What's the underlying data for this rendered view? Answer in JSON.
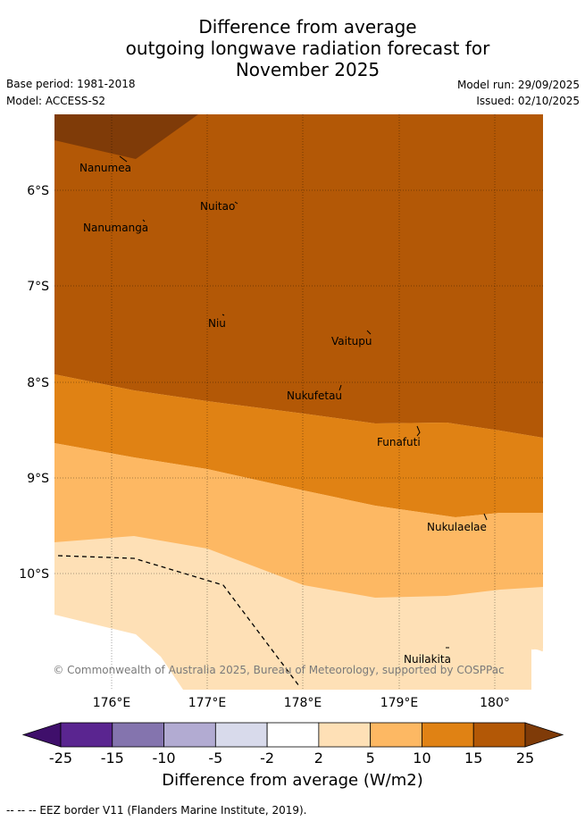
{
  "title": {
    "line1": "Difference from average",
    "line2": "outgoing longwave radiation forecast for",
    "line3": "November 2025"
  },
  "meta": {
    "base_period": "Base period: 1981-2018",
    "model": "Model: ACCESS-S2",
    "model_run": "Model run: 29/09/2025",
    "issued": "Issued: 02/10/2025"
  },
  "map": {
    "lat_labels": [
      "6°S",
      "7°S",
      "8°S",
      "9°S",
      "10°S"
    ],
    "lon_labels": [
      "176°E",
      "177°E",
      "178°E",
      "179°E",
      "180°"
    ],
    "places": [
      {
        "name": "Nanumea"
      },
      {
        "name": "Nuitao"
      },
      {
        "name": "Nanumanga"
      },
      {
        "name": "Niu"
      },
      {
        "name": "Vaitupu"
      },
      {
        "name": "Nukufetau"
      },
      {
        "name": "Funafuti"
      },
      {
        "name": "Nukulaelae"
      },
      {
        "name": "Nuilakita"
      }
    ],
    "copyright": "© Commonwealth of Australia 2025, Bureau of Meteorology, supported by COSPPac"
  },
  "colorbar": {
    "ticks": [
      "-25",
      "-15",
      "-10",
      "-5",
      "-2",
      "2",
      "5",
      "10",
      "15",
      "25"
    ],
    "colors": [
      "#3f0f6b",
      "#5a2590",
      "#8474ae",
      "#b2abd2",
      "#d8daeb",
      "#ffffff",
      "#fee0b6",
      "#fdb863",
      "#e08214",
      "#b35806",
      "#7f3b08"
    ],
    "label": "Difference from average (W/m2)"
  },
  "footer": {
    "legend": "--  --  -- EEZ border V11 (Flanders Marine Institute, 2019)."
  }
}
